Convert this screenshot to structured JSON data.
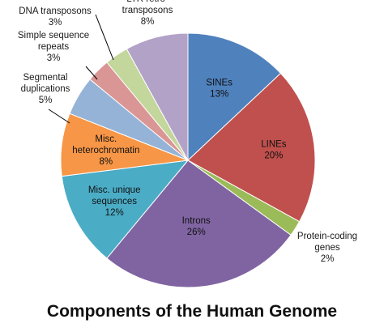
{
  "chart_data": {
    "type": "pie",
    "title": "Components of the Human Genome",
    "slices": [
      {
        "label": [
          "SINEs"
        ],
        "value": 13,
        "pct": "13%",
        "color": "#4f81bd"
      },
      {
        "label": [
          "LINEs"
        ],
        "value": 20,
        "pct": "20%",
        "color": "#c0504d"
      },
      {
        "label": [
          "Protein-coding",
          "genes"
        ],
        "value": 2,
        "pct": "2%",
        "color": "#9bbb59"
      },
      {
        "label": [
          "Introns"
        ],
        "value": 26,
        "pct": "26%",
        "color": "#8064a2"
      },
      {
        "label": [
          "Misc. unique",
          "sequences"
        ],
        "value": 12,
        "pct": "12%",
        "color": "#4bacc6"
      },
      {
        "label": [
          "Misc.",
          "heterochromatin"
        ],
        "value": 8,
        "pct": "8%",
        "color": "#f79646"
      },
      {
        "label": [
          "Segmental",
          "duplications"
        ],
        "value": 5,
        "pct": "5%",
        "color": "#95b3d7"
      },
      {
        "label": [
          "Simple sequence",
          "repeats"
        ],
        "value": 3,
        "pct": "3%",
        "color": "#d99694"
      },
      {
        "label": [
          "DNA transposons"
        ],
        "value": 3,
        "pct": "3%",
        "color": "#c3d69b"
      },
      {
        "label": [
          "LTR retro-",
          "transposons"
        ],
        "value": 8,
        "pct": "8%",
        "color": "#b3a2c7"
      }
    ]
  }
}
